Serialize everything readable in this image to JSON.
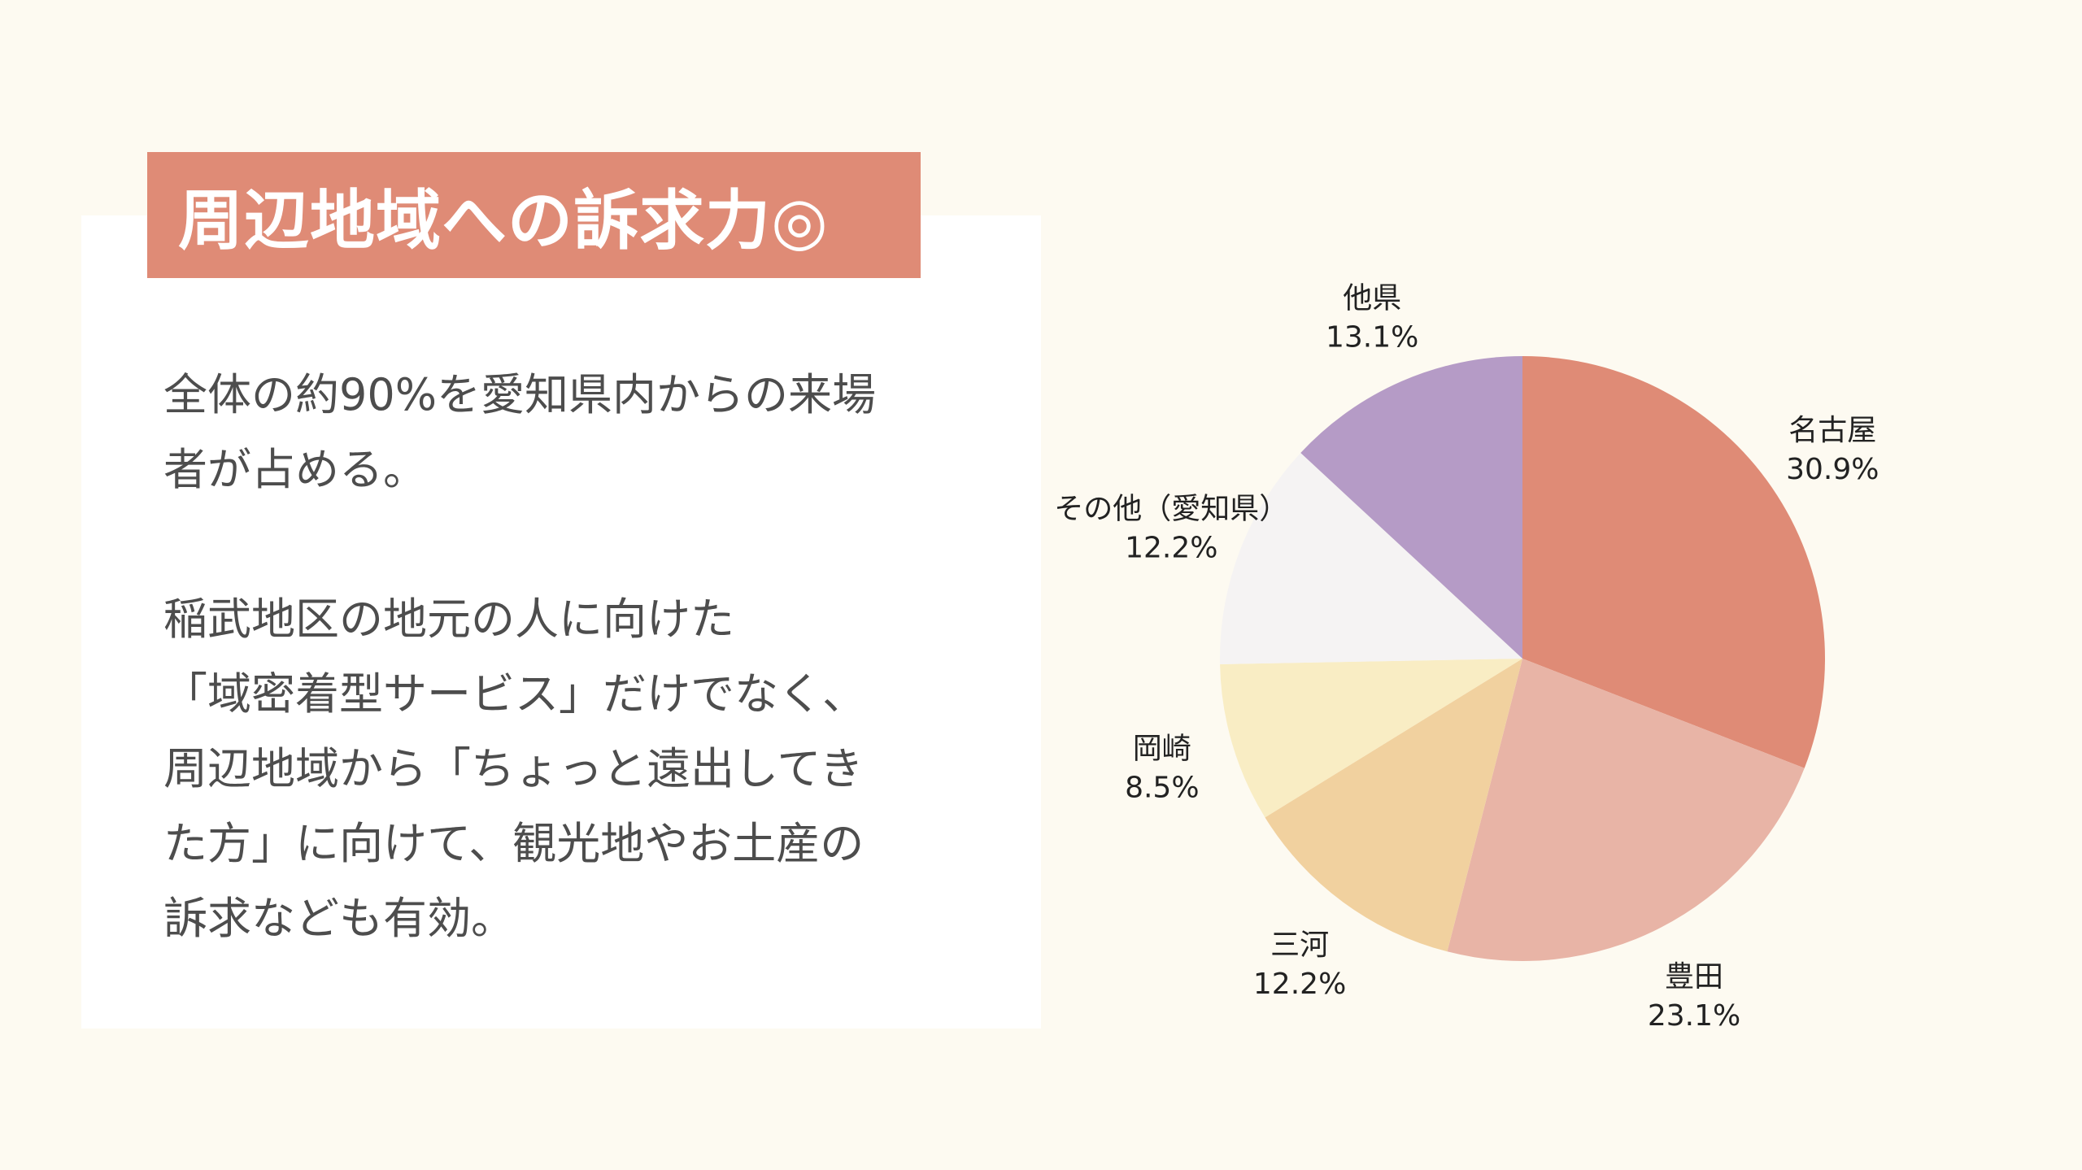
{
  "title": "周辺地域への訴求力◎",
  "body": {
    "paragraph1": [
      "全体の約90%を愛知県内からの来場",
      "者が占める。"
    ],
    "paragraph2": [
      "稲武地区の地元の人に向けた",
      "「域密着型サービス」だけでなく、",
      "周辺地域から「ちょっと遠出してき",
      "た方」に向けて、観光地やお土産の",
      "訴求なども有効。"
    ]
  },
  "chart_data": {
    "type": "pie",
    "start_angle_deg": 0,
    "direction": "clockwise",
    "slices": [
      {
        "label": "名古屋",
        "value": 30.9,
        "value_label": "30.9%",
        "color": "#df8b76"
      },
      {
        "label": "豊田",
        "value": 23.1,
        "value_label": "23.1%",
        "color": "#e8b4a6"
      },
      {
        "label": "三河",
        "value": 12.2,
        "value_label": "12.2%",
        "color": "#f1d19f"
      },
      {
        "label": "岡崎",
        "value": 8.5,
        "value_label": "8.5%",
        "color": "#f9edc4"
      },
      {
        "label": "その他（愛知県）",
        "value": 12.2,
        "value_label": "12.2%",
        "color": "#f5f3f3"
      },
      {
        "label": "他県",
        "value": 13.1,
        "value_label": "13.1%",
        "color": "#b59bc6"
      }
    ]
  }
}
